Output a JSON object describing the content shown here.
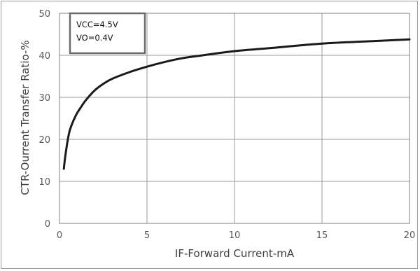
{
  "chart_data": {
    "type": "line",
    "title": "",
    "xlabel": "IF-Forward Current-mA",
    "ylabel": "CTR-Ourrent Transfer Ratio-%",
    "xlim": [
      0,
      20
    ],
    "ylim": [
      0,
      50
    ],
    "x_ticks": [
      "0",
      "5",
      "10",
      "15",
      "20"
    ],
    "y_ticks": [
      "0",
      "10",
      "20",
      "30",
      "40",
      "50"
    ],
    "grid": true,
    "annotation": [
      "VCC=4.5V",
      "VO=0.4V"
    ],
    "series": [
      {
        "x": [
          0.25,
          0.3,
          0.4,
          0.5,
          0.6,
          0.8,
          1.0,
          1.2,
          1.5,
          2.0,
          2.5,
          3.0,
          4.0,
          5.0,
          6.0,
          7.0,
          8.0,
          10.0,
          12.0,
          15.0,
          18.0,
          20.0
        ],
        "y": [
          13,
          15,
          18,
          20.5,
          22.3,
          24.5,
          26.2,
          27.5,
          29.3,
          31.6,
          33.2,
          34.4,
          36.0,
          37.3,
          38.4,
          39.3,
          39.9,
          41.0,
          41.7,
          42.8,
          43.4,
          43.8
        ]
      }
    ]
  }
}
